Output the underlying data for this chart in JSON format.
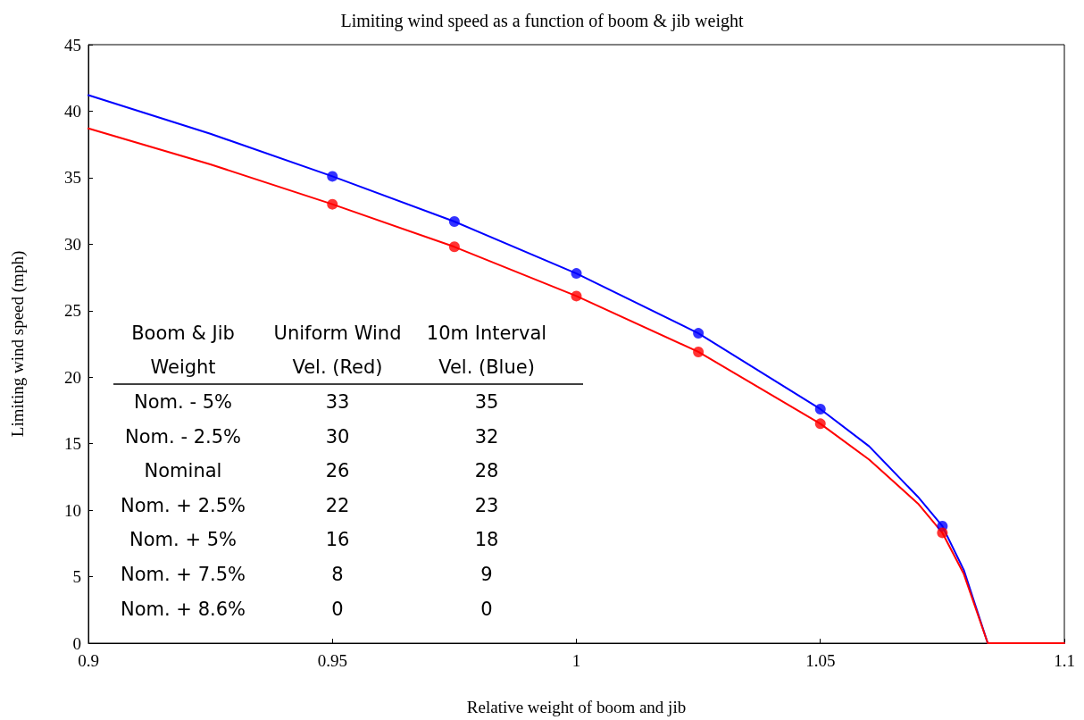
{
  "chart_data": {
    "type": "line",
    "title": "Limiting wind speed as a function of boom & jib weight",
    "xlabel": "Relative weight of boom and jib",
    "ylabel": "Limiting wind speed (mph)",
    "xlim": [
      0.9,
      1.1
    ],
    "xticks": [
      0.9,
      0.95,
      1,
      1.05,
      1.1
    ],
    "ylim": [
      0,
      45
    ],
    "yticks": [
      0,
      5,
      10,
      15,
      20,
      25,
      30,
      35,
      40,
      45
    ],
    "grid": false,
    "line_style": "solid",
    "series": [
      {
        "type": "line",
        "color": "#0000ff",
        "marker": "none",
        "x": [
          0.9,
          0.925,
          0.95,
          0.975,
          1,
          1.025,
          1.05,
          1.06,
          1.07,
          1.075,
          1.0794,
          1.0843,
          1.1
        ],
        "values": [
          41.2,
          38.3,
          35.1,
          31.7,
          27.8,
          23.3,
          17.6,
          14.8,
          11.0,
          8.8,
          5.5,
          0,
          0
        ]
      },
      {
        "type": "line",
        "color": "#ff0000",
        "marker": "none",
        "x": [
          0.9,
          0.925,
          0.95,
          0.975,
          1,
          1.025,
          1.05,
          1.06,
          1.07,
          1.075,
          1.0794,
          1.0843,
          1.1
        ],
        "values": [
          38.7,
          36.0,
          33.0,
          29.8,
          26.1,
          21.9,
          16.5,
          13.8,
          10.5,
          8.3,
          5.2,
          0,
          0
        ]
      },
      {
        "type": "scatter",
        "color": "#0000ff",
        "marker": "circle",
        "x": [
          0.95,
          0.975,
          1,
          1.025,
          1.05,
          1.075
        ],
        "values": [
          35.1,
          31.7,
          27.8,
          23.3,
          17.6,
          8.8
        ]
      },
      {
        "type": "scatter",
        "color": "#ff0000",
        "marker": "circle",
        "x": [
          0.95,
          0.975,
          1,
          1.025,
          1.05,
          1.075
        ],
        "values": [
          33.0,
          29.8,
          26.1,
          21.9,
          16.5,
          8.3
        ]
      }
    ],
    "annotations": [
      "Boom & Jib",
      "Uniform Wind",
      "10m Interval",
      "Weight",
      "Vel. (Red)",
      "Vel. (Blue)",
      "Nom. - 5%",
      "33",
      "35",
      "Nom. - 2.5%",
      "30",
      "32",
      "Nominal",
      "26",
      "28",
      "Nom. + 2.5%",
      "22",
      "23",
      "Nom. + 5%",
      "16",
      "18",
      "Nom. + 7.5%",
      "8",
      "9",
      "Nom. + 8.6%",
      "0",
      "0"
    ]
  }
}
